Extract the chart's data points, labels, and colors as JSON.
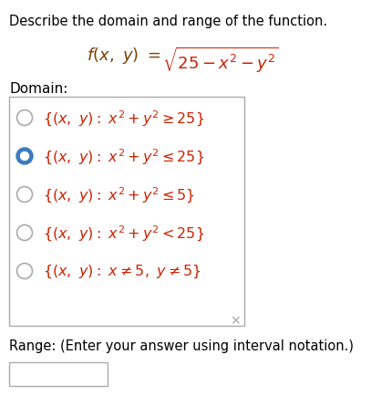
{
  "title": "Describe the domain and range of the function.",
  "domain_label": "Domain:",
  "range_label": "Range: (Enter your answer using interval notation.)",
  "selected_index": 1,
  "bg_color": "#ffffff",
  "title_color": "#000000",
  "func_brown": "#7B3F00",
  "func_red": "#cc2200",
  "option_color": "#cc2200",
  "option_italic_color": "#7B3F00",
  "radio_selected": "#3a7bbf",
  "radio_border": "#aaaaaa",
  "box_border": "#aaaaaa",
  "x_mark_color": "#aaaaaa",
  "domain_text_color": "#000000",
  "range_text_color": "#000000",
  "figw": 4.07,
  "figh": 4.35,
  "dpi": 100
}
